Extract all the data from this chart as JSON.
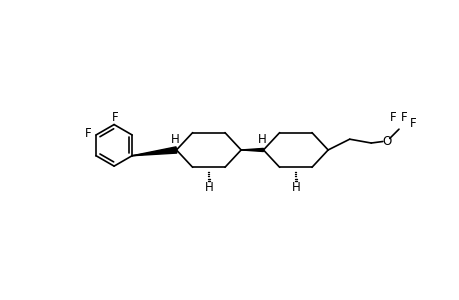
{
  "bg_color": "#ffffff",
  "line_color": "#000000",
  "lw": 1.2,
  "fs": 8.5,
  "figsize": [
    4.6,
    3.0
  ],
  "dpi": 100,
  "xlim": [
    0,
    460
  ],
  "ylim": [
    0,
    300
  ]
}
